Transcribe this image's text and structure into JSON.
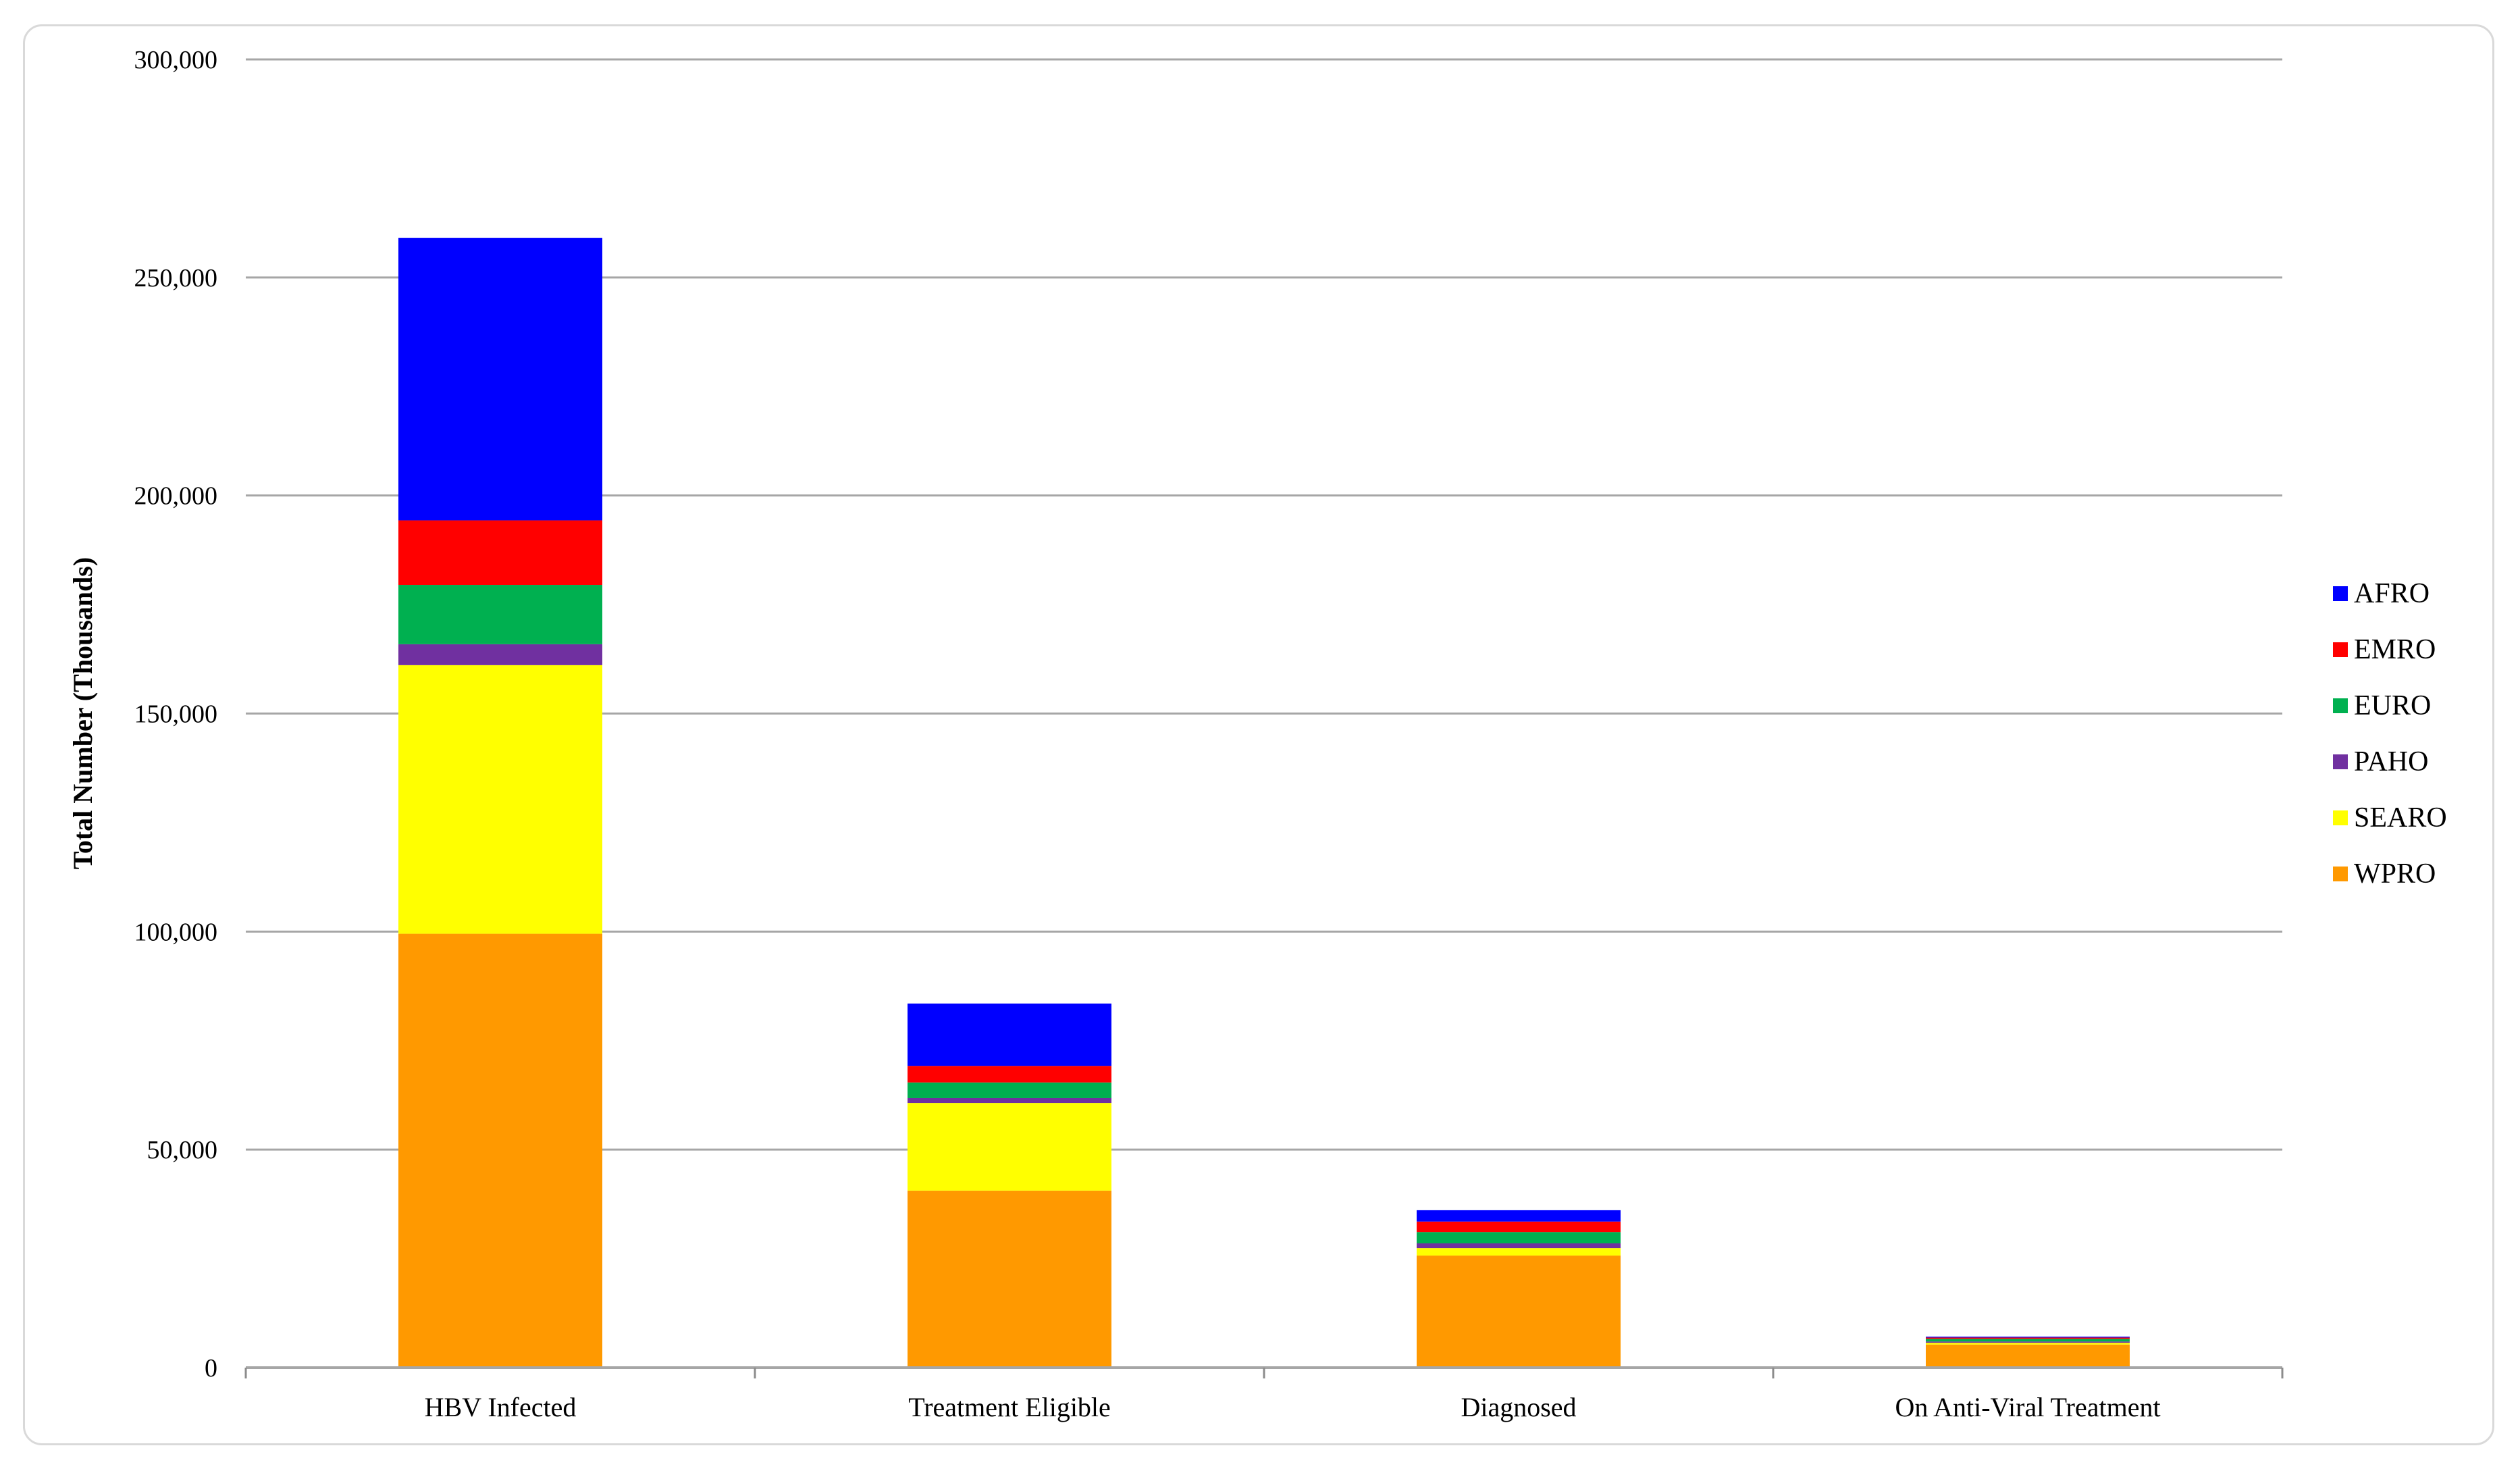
{
  "chart_data": {
    "type": "bar",
    "stacked": true,
    "title": "",
    "xlabel": "",
    "ylabel": "Total Number (Thousands)",
    "ylim": [
      0,
      300000
    ],
    "yticks": [
      0,
      50000,
      100000,
      150000,
      200000,
      250000,
      300000
    ],
    "ytick_labels": [
      "0",
      "50,000",
      "100,000",
      "150,000",
      "200,000",
      "250,000",
      "300,000"
    ],
    "grid": true,
    "legend": "right",
    "categories": [
      "HBV Infected",
      "Treatment Eligible",
      "Diagnosed",
      "On Anti-Viral Treatment"
    ],
    "series": [
      {
        "name": "WPRO",
        "color": "#ff9900",
        "values": [
          99500,
          40600,
          25700,
          5300
        ]
      },
      {
        "name": "SEARO",
        "color": "#ffff00",
        "values": [
          61600,
          20100,
          1700,
          400
        ]
      },
      {
        "name": "PAHO",
        "color": "#7030a0",
        "values": [
          4800,
          1100,
          1100,
          300
        ]
      },
      {
        "name": "EURO",
        "color": "#00b050",
        "values": [
          13600,
          3600,
          2600,
          600
        ]
      },
      {
        "name": "EMRO",
        "color": "#ff0000",
        "values": [
          14800,
          3800,
          2400,
          300
        ]
      },
      {
        "name": "AFRO",
        "color": "#0000ff",
        "values": [
          64800,
          14300,
          2600,
          200
        ]
      }
    ]
  }
}
